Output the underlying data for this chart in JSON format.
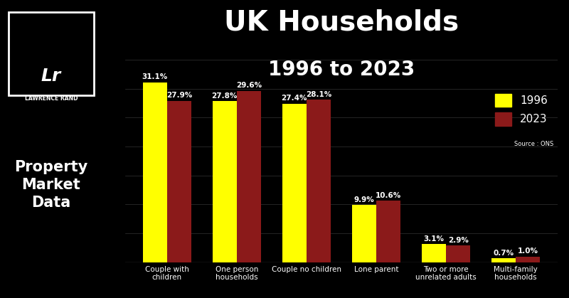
{
  "title_line1": "UK Households",
  "title_line2": "1996 to 2023",
  "categories": [
    "Couple with\nchildren",
    "One person\nhouseholds",
    "Couple no children",
    "Lone parent",
    "Two or more\nunrelated adults",
    "Multi-family\nhouseholds"
  ],
  "values_1996": [
    31.1,
    27.8,
    27.4,
    9.9,
    3.1,
    0.7
  ],
  "values_2023": [
    27.9,
    29.6,
    28.1,
    10.6,
    2.9,
    1.0
  ],
  "labels_1996": [
    "31.1%",
    "27.8%",
    "27.4%",
    "9.9%",
    "3.1%",
    "0.7%"
  ],
  "labels_2023": [
    "27.9%",
    "29.6%",
    "28.1%",
    "10.6%",
    "2.9%",
    "1.0%"
  ],
  "color_1996": "#FFFF00",
  "color_2023": "#8B1A1A",
  "background_color": "#000000",
  "left_panel_color": "#8B1A1A",
  "title_color": "#FFFFFF",
  "label_color": "#FFFFFF",
  "xticklabel_color": "#FFFFFF",
  "legend_label_1996": "1996",
  "legend_label_2023": "2023",
  "source_text": "Source : ONS",
  "left_text": "Property\nMarket\nData",
  "logo_text": "Lr",
  "logo_subtext": "LAWRENCE RAND",
  "ylim": [
    0,
    35
  ],
  "bar_width": 0.35
}
